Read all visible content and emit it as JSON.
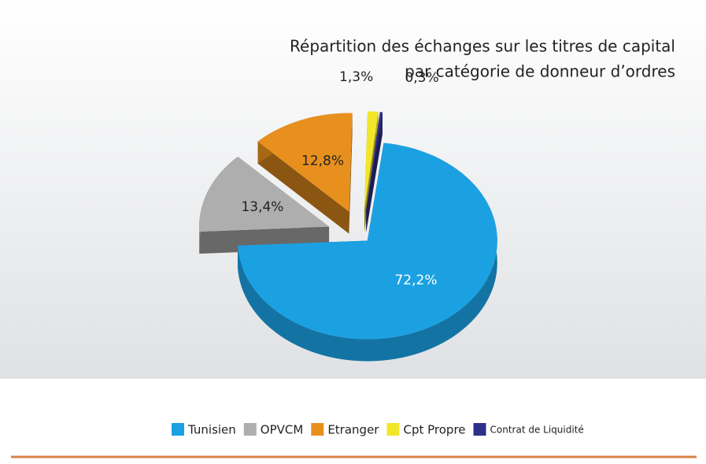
{
  "chart_data": {
    "type": "pie",
    "title": [
      "Répartition des échanges sur les titres de capital",
      "par catégorie de donneur d’ordres"
    ],
    "categories": [
      "Tunisien",
      "OPVCM",
      "Etranger",
      "Cpt Propre",
      "Contrat de Liquidité"
    ],
    "values": [
      72.2,
      13.4,
      12.8,
      1.3,
      0.3
    ],
    "value_labels": [
      "72,2%",
      "13,4%",
      "12,8%",
      "1,3%",
      "0,3%"
    ],
    "colors": [
      "#1ba1e2",
      "#aeaeae",
      "#e8901e",
      "#f2e62a",
      "#2e2f8a"
    ],
    "legend": "bottom"
  }
}
